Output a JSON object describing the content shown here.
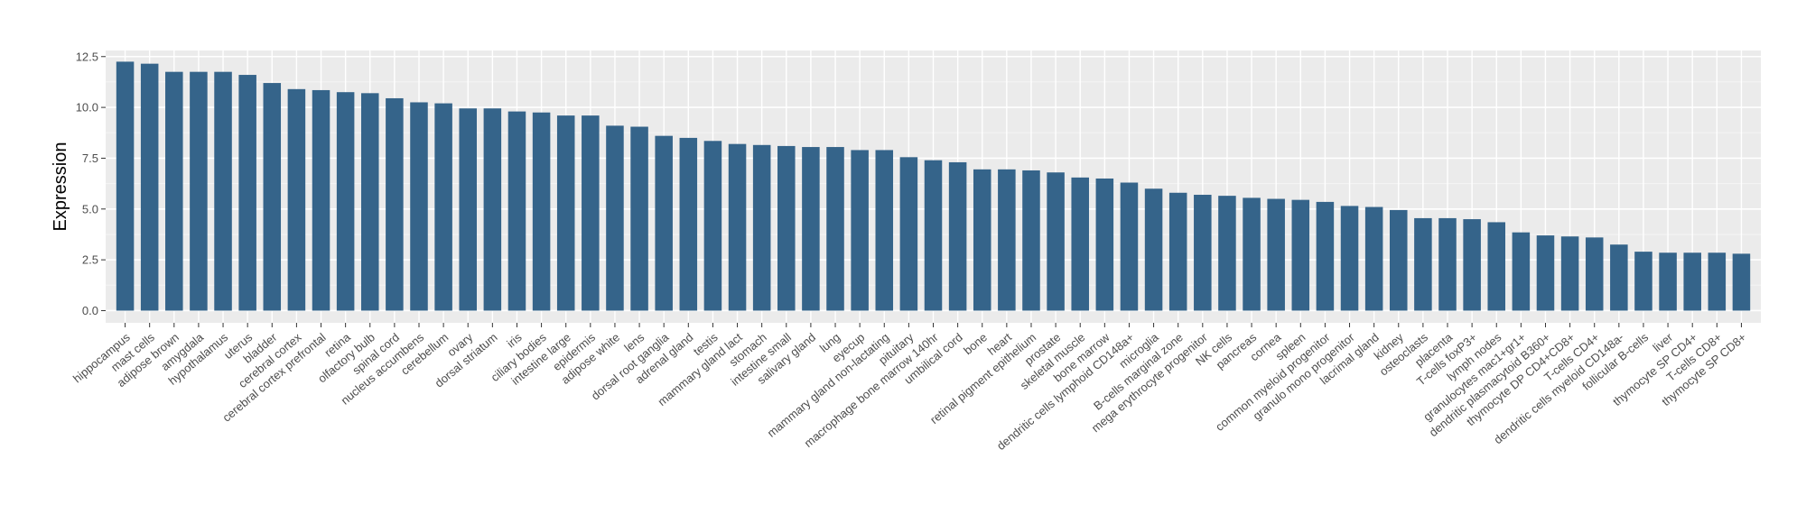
{
  "chart_data": {
    "type": "bar",
    "title": "",
    "xlabel": "",
    "ylabel": "Expression",
    "ylim": [
      -0.6,
      12.8
    ],
    "yticks": [
      0.0,
      2.5,
      5.0,
      7.5,
      10.0,
      12.5
    ],
    "ytick_labels": [
      "0.0",
      "2.5",
      "5.0",
      "7.5",
      "10.0",
      "12.5"
    ],
    "grid": true,
    "colors": {
      "bar": "#35648A",
      "panel": "#EBEBEB",
      "grid_major": "#FFFFFF",
      "grid_minor": "#F5F5F5"
    },
    "categories": [
      "hippocampus",
      "mast cells",
      "adipose brown",
      "amygdala",
      "hypothalamus",
      "uterus",
      "bladder",
      "cerebral cortex",
      "cerebral cortex prefrontal",
      "retina",
      "olfactory bulb",
      "spinal cord",
      "nucleus accumbens",
      "cerebellum",
      "ovary",
      "dorsal striatum",
      "iris",
      "ciliary bodies",
      "intestine large",
      "epidermis",
      "adipose white",
      "lens",
      "dorsal root ganglia",
      "adrenal gland",
      "testis",
      "mammary gland lact",
      "stomach",
      "intestine small",
      "salivary gland",
      "lung",
      "eyecup",
      "mammary gland non-lactating",
      "pituitary",
      "macrophage bone marrow 140hr",
      "umbilical cord",
      "bone",
      "heart",
      "retinal pigment epithelium",
      "prostate",
      "skeletal muscle",
      "bone marrow",
      "dendritic cells lymphoid CD148a+",
      "microglia",
      "B-cells marginal zone",
      "mega erythrocyte progenitor",
      "NK cells",
      "pancreas",
      "cornea",
      "spleen",
      "common myeloid progenitor",
      "granulo mono progenitor",
      "lacrimal gland",
      "kidney",
      "osteoclasts",
      "placenta",
      "T-cells foxP3+",
      "lymph nodes",
      "granulocytes mac1+gr1+",
      "dendritic plasmacytoid B360+",
      "thymocyte DP CD4+CD8+",
      "T-cells CD4+",
      "dendritic cells myeloid CD148a-",
      "follicular B-cells",
      "liver",
      "thymocyte SP CD4+",
      "T-cells CD8+",
      "thymocyte SP CD8+"
    ],
    "values": [
      12.25,
      12.15,
      11.75,
      11.75,
      11.75,
      11.6,
      11.2,
      10.9,
      10.85,
      10.75,
      10.7,
      10.45,
      10.25,
      10.2,
      9.95,
      9.95,
      9.8,
      9.75,
      9.6,
      9.6,
      9.1,
      9.05,
      8.6,
      8.5,
      8.35,
      8.2,
      8.15,
      8.1,
      8.05,
      8.05,
      7.9,
      7.9,
      7.55,
      7.4,
      7.3,
      6.95,
      6.95,
      6.9,
      6.8,
      6.55,
      6.5,
      6.3,
      6.0,
      5.8,
      5.7,
      5.65,
      5.55,
      5.5,
      5.45,
      5.35,
      5.15,
      5.1,
      4.95,
      4.55,
      4.55,
      4.5,
      4.35,
      3.85,
      3.7,
      3.65,
      3.6,
      3.25,
      2.9,
      2.85,
      2.85,
      2.85,
      2.8
    ]
  }
}
